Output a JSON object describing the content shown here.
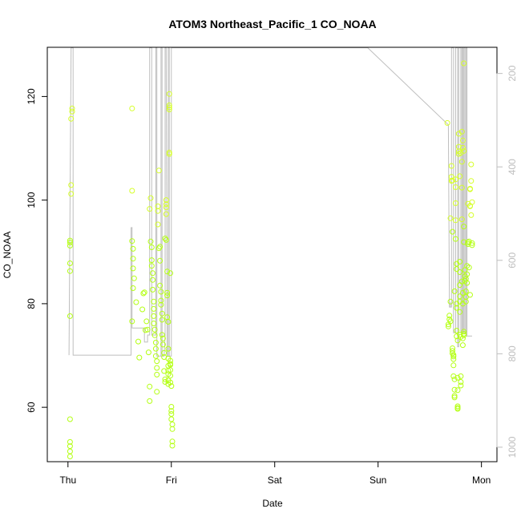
{
  "chart_data": {
    "type": "scatter",
    "title": "ATOM3 Northeast_Pacific_1 CO_NOAA",
    "xlabel": "Date",
    "ylabel": "CO_NOAA",
    "x_ticks": [
      "Thu",
      "Fri",
      "Sat",
      "Sun",
      "Mon"
    ],
    "x_tick_values": [
      0,
      1,
      2,
      3,
      4
    ],
    "xlim": [
      -0.2,
      4.15
    ],
    "ylim": [
      49.5,
      129.5
    ],
    "y_ticks": [
      60,
      80,
      100,
      120
    ],
    "y2_label_ticks": [
      200,
      400,
      600,
      800,
      1000
    ],
    "y2lim": [
      1031,
      144
    ],
    "y2_reversed": true,
    "grid": false,
    "colors": {
      "low_points": "#b4ff14",
      "high_points": "#d6ff2a",
      "pressure_line": "#bebebe",
      "axis": "#000000",
      "secondary_axis": "#bebebe"
    },
    "series": [
      {
        "values": [
          [
            0.02,
            50.5
          ],
          [
            0.02,
            52.5
          ],
          [
            0.02,
            53.3
          ],
          [
            0.02,
            51.5
          ],
          [
            0.02,
            57.7
          ],
          [
            0.02,
            77.6
          ],
          [
            0.02,
            86.3
          ],
          [
            0.02,
            87.8
          ],
          [
            0.02,
            91.2
          ],
          [
            0.02,
            91.8
          ],
          [
            0.02,
            92.2
          ],
          [
            0.03,
            101.2
          ],
          [
            0.03,
            102.9
          ],
          [
            0.03,
            115.7
          ],
          [
            0.04,
            117.1
          ],
          [
            0.04,
            117.7
          ],
          [
            0.62,
            117.7
          ],
          [
            0.62,
            101.8
          ],
          [
            0.62,
            92.1
          ],
          [
            0.63,
            90.6
          ],
          [
            0.63,
            88.7
          ],
          [
            0.63,
            86.8
          ],
          [
            0.64,
            84.9
          ],
          [
            0.63,
            83.0
          ],
          [
            0.62,
            76.6
          ],
          [
            0.66,
            80.3
          ],
          [
            0.68,
            72.7
          ],
          [
            0.69,
            69.6
          ],
          [
            0.72,
            78.9
          ],
          [
            0.73,
            82.0
          ],
          [
            0.74,
            82.2
          ],
          [
            0.75,
            74.9
          ],
          [
            0.76,
            76.6
          ],
          [
            0.77,
            75.0
          ],
          [
            0.78,
            70.6
          ],
          [
            0.79,
            61.2
          ],
          [
            0.79,
            64.0
          ],
          [
            0.79,
            98.3
          ],
          [
            0.8,
            100.4
          ],
          [
            0.8,
            92.0
          ],
          [
            0.81,
            90.9
          ],
          [
            0.81,
            88.4
          ],
          [
            0.81,
            87.3
          ],
          [
            0.82,
            85.9
          ],
          [
            0.82,
            84.6
          ],
          [
            0.82,
            82.7
          ],
          [
            0.83,
            80.4
          ],
          [
            0.83,
            79.0
          ],
          [
            0.83,
            77.6
          ],
          [
            0.83,
            76.2
          ],
          [
            0.84,
            75.0
          ],
          [
            0.84,
            73.9
          ],
          [
            0.85,
            72.5
          ],
          [
            0.85,
            71.3
          ],
          [
            0.85,
            69.9
          ],
          [
            0.86,
            68.9
          ],
          [
            0.86,
            67.6
          ],
          [
            0.86,
            66.3
          ],
          [
            0.86,
            63.0
          ],
          [
            0.87,
            95.3
          ],
          [
            0.87,
            98.8
          ],
          [
            0.87,
            97.9
          ],
          [
            0.88,
            90.7
          ],
          [
            0.88,
            105.7
          ],
          [
            0.89,
            91.0
          ],
          [
            0.89,
            88.3
          ],
          [
            0.89,
            83.5
          ],
          [
            0.9,
            82.3
          ],
          [
            0.9,
            80.6
          ],
          [
            0.9,
            79.8
          ],
          [
            0.91,
            78.1
          ],
          [
            0.91,
            76.9
          ],
          [
            0.91,
            74.0
          ],
          [
            0.92,
            73.3
          ],
          [
            0.92,
            72.1
          ],
          [
            0.93,
            70.5
          ],
          [
            0.93,
            69.7
          ],
          [
            0.93,
            67.0
          ],
          [
            0.94,
            65.4
          ],
          [
            0.94,
            64.9
          ],
          [
            0.94,
            92.6
          ],
          [
            0.95,
            92.3
          ],
          [
            0.95,
            97.3
          ],
          [
            0.95,
            98.6
          ],
          [
            0.95,
            99.2
          ],
          [
            0.95,
            100.0
          ],
          [
            0.96,
            86.2
          ],
          [
            0.96,
            82.1
          ],
          [
            0.96,
            81.6
          ],
          [
            0.96,
            77.4
          ],
          [
            0.97,
            76.5
          ],
          [
            0.97,
            71.3
          ],
          [
            0.97,
            69.4
          ],
          [
            0.97,
            68.0
          ],
          [
            0.97,
            67.1
          ],
          [
            0.97,
            66.4
          ],
          [
            0.97,
            65.2
          ],
          [
            0.97,
            64.5
          ],
          [
            0.98,
            117.5
          ],
          [
            0.98,
            118.3
          ],
          [
            0.98,
            117.9
          ],
          [
            0.98,
            109.2
          ],
          [
            0.98,
            108.9
          ],
          [
            0.98,
            120.5
          ],
          [
            0.99,
            85.9
          ],
          [
            0.99,
            69.0
          ],
          [
            0.99,
            68.4
          ],
          [
            0.99,
            68.2
          ],
          [
            0.99,
            67.2
          ],
          [
            0.99,
            66.1
          ],
          [
            0.99,
            64.8
          ],
          [
            1.0,
            64.1
          ],
          [
            1.0,
            60.1
          ],
          [
            1.0,
            59.3
          ],
          [
            1.0,
            58.7
          ],
          [
            1.0,
            57.7
          ],
          [
            1.01,
            56.7
          ],
          [
            1.01,
            55.8
          ],
          [
            1.01,
            53.4
          ],
          [
            1.01,
            52.6
          ]
        ]
      },
      {
        "values": [
          [
            3.67,
            114.9
          ],
          [
            3.68,
            75.6
          ],
          [
            3.68,
            76.0
          ],
          [
            3.69,
            77.0
          ],
          [
            3.69,
            77.7
          ],
          [
            3.7,
            76.6
          ],
          [
            3.7,
            80.4
          ],
          [
            3.7,
            96.5
          ],
          [
            3.71,
            104.5
          ],
          [
            3.71,
            106.6
          ],
          [
            3.71,
            103.7
          ],
          [
            3.72,
            103.8
          ],
          [
            3.72,
            93.9
          ],
          [
            3.72,
            71.4
          ],
          [
            3.72,
            70.9
          ],
          [
            3.72,
            70.4
          ],
          [
            3.73,
            69.8
          ],
          [
            3.73,
            70.1
          ],
          [
            3.73,
            69.3
          ],
          [
            3.73,
            68.1
          ],
          [
            3.73,
            66.0
          ],
          [
            3.74,
            65.4
          ],
          [
            3.74,
            63.4
          ],
          [
            3.74,
            62.2
          ],
          [
            3.74,
            61.9
          ],
          [
            3.74,
            82.4
          ],
          [
            3.75,
            104.0
          ],
          [
            3.75,
            102.5
          ],
          [
            3.75,
            99.4
          ],
          [
            3.75,
            96.1
          ],
          [
            3.75,
            92.5
          ],
          [
            3.76,
            87.7
          ],
          [
            3.76,
            86.7
          ],
          [
            3.76,
            80.0
          ],
          [
            3.76,
            79.2
          ],
          [
            3.76,
            74.8
          ],
          [
            3.76,
            73.7
          ],
          [
            3.77,
            72.9
          ],
          [
            3.77,
            65.7
          ],
          [
            3.77,
            63.3
          ],
          [
            3.77,
            60.2
          ],
          [
            3.77,
            59.7
          ],
          [
            3.77,
            59.9
          ],
          [
            3.78,
            110.3
          ],
          [
            3.78,
            112.8
          ],
          [
            3.78,
            109.4
          ],
          [
            3.78,
            108.9
          ],
          [
            3.79,
            104.6
          ],
          [
            3.79,
            88.1
          ],
          [
            3.79,
            86.1
          ],
          [
            3.79,
            83.6
          ],
          [
            3.79,
            81.4
          ],
          [
            3.79,
            80.4
          ],
          [
            3.79,
            78.4
          ],
          [
            3.79,
            74.0
          ],
          [
            3.8,
            73.6
          ],
          [
            3.8,
            66.0
          ],
          [
            3.8,
            64.9
          ],
          [
            3.8,
            64.2
          ],
          [
            3.8,
            109.1
          ],
          [
            3.81,
            113.2
          ],
          [
            3.81,
            107.4
          ],
          [
            3.81,
            102.4
          ],
          [
            3.81,
            96.3
          ],
          [
            3.81,
            84.3
          ],
          [
            3.82,
            82.1
          ],
          [
            3.82,
            80.0
          ],
          [
            3.82,
            73.3
          ],
          [
            3.82,
            72.0
          ],
          [
            3.82,
            111.5
          ],
          [
            3.82,
            110.1
          ],
          [
            3.83,
            126.4
          ],
          [
            3.83,
            109.5
          ],
          [
            3.83,
            94.9
          ],
          [
            3.83,
            91.9
          ],
          [
            3.83,
            74.6
          ],
          [
            3.83,
            74.2
          ],
          [
            3.83,
            73.9
          ],
          [
            3.84,
            86.5
          ],
          [
            3.84,
            85.3
          ],
          [
            3.84,
            84.4
          ],
          [
            3.85,
            84.8
          ],
          [
            3.85,
            82.4
          ],
          [
            3.85,
            81.3
          ],
          [
            3.85,
            80.4
          ],
          [
            3.86,
            87.3
          ],
          [
            3.86,
            85.7
          ],
          [
            3.86,
            84.0
          ],
          [
            3.87,
            99.3
          ],
          [
            3.87,
            91.8
          ],
          [
            3.87,
            91.5
          ],
          [
            3.88,
            92.0
          ],
          [
            3.88,
            87.0
          ],
          [
            3.89,
            81.7
          ],
          [
            3.89,
            98.9
          ],
          [
            3.89,
            102.2
          ],
          [
            3.89,
            102.1
          ],
          [
            3.89,
            98.8
          ],
          [
            3.9,
            97.1
          ],
          [
            3.9,
            106.9
          ],
          [
            3.9,
            103.7
          ],
          [
            3.91,
            99.6
          ],
          [
            3.91,
            91.3
          ],
          [
            3.91,
            91.7
          ]
        ]
      }
    ],
    "pressure_line": [
      [
        0.01,
        803
      ],
      [
        0.01,
        803
      ],
      [
        0.03,
        145
      ],
      [
        0.04,
        145
      ],
      [
        0.05,
        145
      ],
      [
        0.05,
        803
      ],
      [
        0.3,
        803
      ],
      [
        0.61,
        803
      ],
      [
        0.61,
        803
      ],
      [
        0.61,
        530
      ],
      [
        0.62,
        530
      ],
      [
        0.62,
        745
      ],
      [
        0.72,
        745
      ],
      [
        0.73,
        745
      ],
      [
        0.74,
        745
      ],
      [
        0.74,
        775
      ],
      [
        0.76,
        775
      ],
      [
        0.77,
        775
      ],
      [
        0.77,
        760
      ],
      [
        0.78,
        760
      ],
      [
        0.79,
        760
      ],
      [
        0.79,
        145
      ],
      [
        0.81,
        145
      ],
      [
        0.81,
        760
      ],
      [
        0.85,
        760
      ],
      [
        0.85,
        145
      ],
      [
        0.86,
        145
      ],
      [
        0.86,
        805
      ],
      [
        0.9,
        805
      ],
      [
        0.9,
        145
      ],
      [
        0.91,
        145
      ],
      [
        0.91,
        805
      ],
      [
        0.93,
        805
      ],
      [
        0.94,
        760
      ],
      [
        0.94,
        145
      ],
      [
        0.95,
        145
      ],
      [
        0.96,
        805
      ],
      [
        0.97,
        805
      ],
      [
        0.97,
        145
      ],
      [
        0.98,
        145
      ],
      [
        0.98,
        805
      ],
      [
        1.0,
        805
      ],
      [
        1.0,
        145
      ],
      [
        1.01,
        145
      ],
      [
        1.02,
        145
      ],
      [
        1.29,
        145
      ],
      [
        2.9,
        145
      ],
      [
        3.68,
        310
      ],
      [
        3.68,
        310
      ],
      [
        3.69,
        700
      ],
      [
        3.7,
        700
      ],
      [
        3.7,
        690
      ],
      [
        3.7,
        700
      ],
      [
        3.71,
        700
      ],
      [
        3.71,
        145
      ],
      [
        3.72,
        145
      ],
      [
        3.73,
        145
      ],
      [
        3.73,
        755
      ],
      [
        3.74,
        755
      ],
      [
        3.75,
        755
      ],
      [
        3.75,
        145
      ],
      [
        3.76,
        145
      ],
      [
        3.77,
        145
      ],
      [
        3.77,
        785
      ],
      [
        3.78,
        785
      ],
      [
        3.78,
        145
      ],
      [
        3.79,
        145
      ],
      [
        3.8,
        145
      ],
      [
        3.8,
        755
      ],
      [
        3.81,
        755
      ],
      [
        3.81,
        145
      ],
      [
        3.82,
        145
      ],
      [
        3.82,
        755
      ],
      [
        3.83,
        755
      ],
      [
        3.83,
        735
      ],
      [
        3.83,
        145
      ],
      [
        3.84,
        145
      ],
      [
        3.84,
        755
      ],
      [
        3.85,
        755
      ],
      [
        3.85,
        145
      ],
      [
        3.86,
        145
      ],
      [
        3.86,
        762
      ],
      [
        3.89,
        762
      ],
      [
        3.89,
        762
      ],
      [
        3.89,
        762
      ],
      [
        3.9,
        762
      ],
      [
        3.91,
        762
      ]
    ]
  }
}
